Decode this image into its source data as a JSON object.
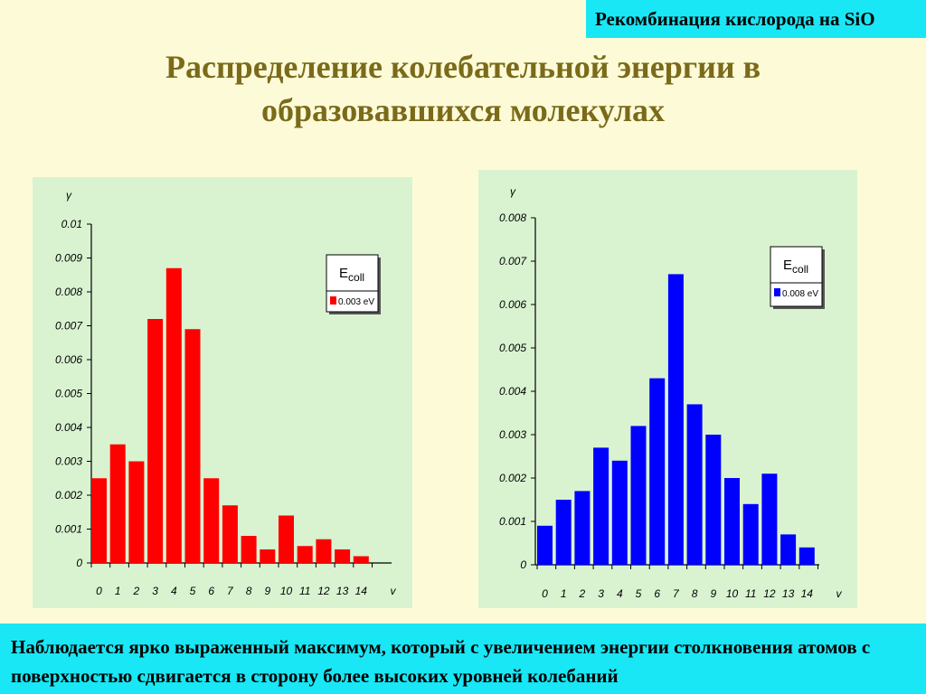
{
  "header": {
    "topic": "Рекомбинация кислорода на SiO",
    "title_line1": "Распределение колебательной энергии в",
    "title_line2": "образовавшихся молекулах"
  },
  "caption": "Наблюдается ярко выраженный максимум, который с увеличением энергии столкновения атомов с поверхностью сдвигается в сторону более высоких уровней колебаний",
  "colors": {
    "red": "#ff0000",
    "blue": "#0000ff",
    "panel": "#d9f3d1",
    "accent": "#19e7f5"
  },
  "chart_data": [
    {
      "type": "bar",
      "categories": [
        "0",
        "1",
        "2",
        "3",
        "4",
        "5",
        "6",
        "7",
        "8",
        "9",
        "10",
        "11",
        "12",
        "13",
        "14"
      ],
      "values": [
        0.0025,
        0.0035,
        0.003,
        0.0072,
        0.0087,
        0.0069,
        0.0025,
        0.0017,
        0.0008,
        0.0004,
        0.0014,
        0.0005,
        0.0007,
        0.0004,
        0.0002
      ],
      "ylim": [
        0,
        0.01
      ],
      "yticks": [
        "0",
        "0.001",
        "0.002",
        "0.003",
        "0.004",
        "0.005",
        "0.006",
        "0.007",
        "0.008",
        "0.009",
        "0.01"
      ],
      "xlabel": "v",
      "ylabel": "γ",
      "legend_title": "E",
      "legend_title_sub": "coll",
      "legend_entry": "0.003 eV",
      "legend_position": "top-right",
      "color": "#ff0000"
    },
    {
      "type": "bar",
      "categories": [
        "0",
        "1",
        "2",
        "3",
        "4",
        "5",
        "6",
        "7",
        "8",
        "9",
        "10",
        "11",
        "12",
        "13",
        "14"
      ],
      "values": [
        0.0009,
        0.0015,
        0.0017,
        0.0027,
        0.0024,
        0.0032,
        0.0043,
        0.0067,
        0.0037,
        0.003,
        0.002,
        0.0014,
        0.0021,
        0.0007,
        0.0004
      ],
      "ylim": [
        0,
        0.008
      ],
      "yticks": [
        "0",
        "0.001",
        "0.002",
        "0.003",
        "0.004",
        "0.005",
        "0.006",
        "0.007",
        "0.008"
      ],
      "xlabel": "v",
      "ylabel": "γ",
      "legend_title": "E",
      "legend_title_sub": "coll",
      "legend_entry": "0.008 eV",
      "legend_position": "top-right",
      "color": "#0000ff"
    }
  ]
}
